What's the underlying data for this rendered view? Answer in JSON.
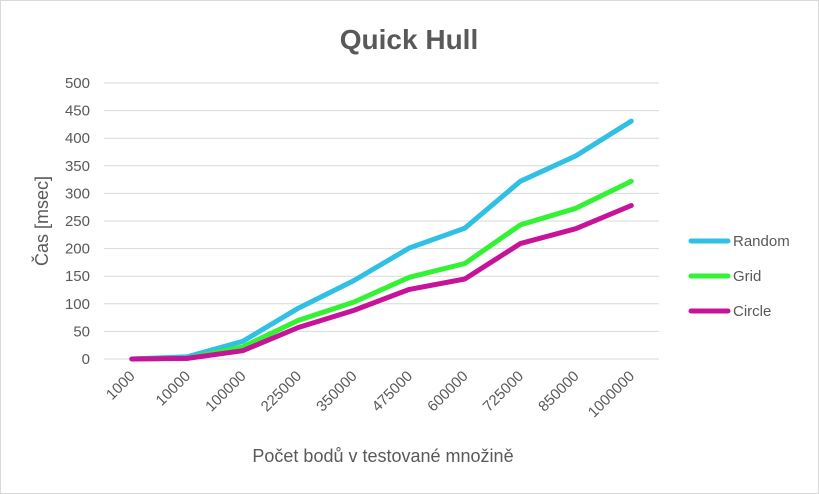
{
  "chart_data": {
    "type": "line",
    "title": "Quick Hull",
    "xlabel": "Počet bodů v testované množině",
    "ylabel": "Čas [msec]",
    "categories": [
      "1000",
      "10000",
      "100000",
      "225000",
      "350000",
      "475000",
      "600000",
      "725000",
      "850000",
      "1000000"
    ],
    "ylim": [
      0,
      500
    ],
    "yticks": [
      0,
      50,
      100,
      150,
      200,
      250,
      300,
      350,
      400,
      450,
      500
    ],
    "grid": true,
    "legend_position": "right",
    "series": [
      {
        "name": "Random",
        "color": "#2fc0e4",
        "values": [
          0,
          4,
          32,
          92,
          142,
          201,
          237,
          322,
          368,
          431
        ]
      },
      {
        "name": "Grid",
        "color": "#33f233",
        "values": [
          0,
          1,
          22,
          70,
          103,
          148,
          173,
          243,
          273,
          322
        ]
      },
      {
        "name": "Circle",
        "color": "#c7139a",
        "values": [
          0,
          1,
          15,
          57,
          88,
          126,
          145,
          209,
          236,
          278
        ]
      }
    ]
  }
}
